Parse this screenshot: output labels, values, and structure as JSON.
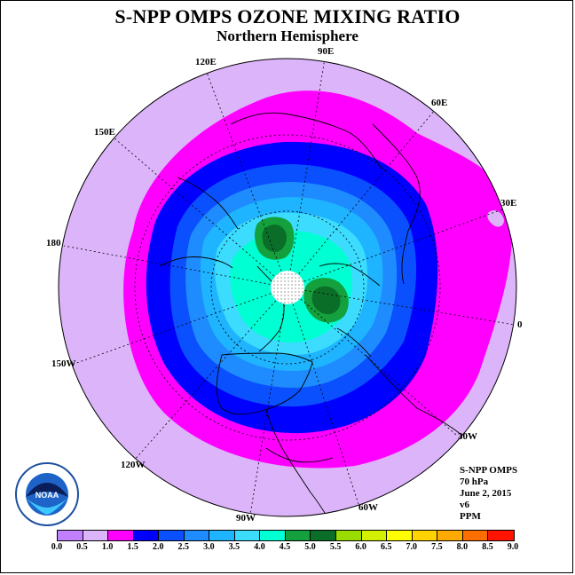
{
  "header": {
    "title": "S-NPP OMPS OZONE MIXING RATIO",
    "subtitle": "Northern Hemisphere"
  },
  "longitude_labels": [
    {
      "id": "lon-90e",
      "text": "90E"
    },
    {
      "id": "lon-120e",
      "text": "120E"
    },
    {
      "id": "lon-60e",
      "text": "60E"
    },
    {
      "id": "lon-150e",
      "text": "150E"
    },
    {
      "id": "lon-30e",
      "text": "30E"
    },
    {
      "id": "lon-180",
      "text": "180"
    },
    {
      "id": "lon-0",
      "text": "0"
    },
    {
      "id": "lon-150w",
      "text": "150W"
    },
    {
      "id": "lon-30w",
      "text": "30W"
    },
    {
      "id": "lon-120w",
      "text": "120W"
    },
    {
      "id": "lon-60w",
      "text": "60W"
    },
    {
      "id": "lon-90w",
      "text": "90W"
    }
  ],
  "info": {
    "line1": "S-NPP OMPS",
    "line2": "70 hPa",
    "line3": "June 2, 2015",
    "line4": "v6",
    "line5": "PPM"
  },
  "logo": {
    "text": "NOAA"
  },
  "colorbar": {
    "labels": [
      "0.0",
      "0.5",
      "1.0",
      "1.5",
      "2.0",
      "2.5",
      "3.0",
      "3.5",
      "4.0",
      "4.5",
      "5.0",
      "5.5",
      "6.0",
      "6.5",
      "7.0",
      "7.5",
      "8.0",
      "8.5",
      "9.0"
    ],
    "colors": [
      "#c080ff",
      "#dcb4fa",
      "#ff00ff",
      "#0000ff",
      "#0a50ff",
      "#1e8cff",
      "#1eb4ff",
      "#3cdcff",
      "#00ffd2",
      "#14a03c",
      "#0a6e28",
      "#9bdc00",
      "#d2f000",
      "#ffff00",
      "#ffd200",
      "#ffaa00",
      "#ff6e00",
      "#ff1400",
      "#a05a3c"
    ]
  },
  "map": {
    "pole_fill": "#ffffff",
    "background": "#dcb4fa"
  }
}
